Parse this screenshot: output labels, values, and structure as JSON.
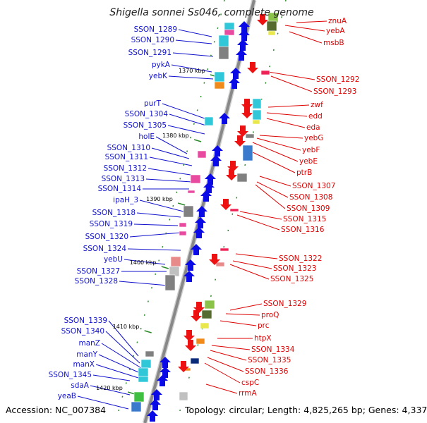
{
  "title": "Shigella sonnei Ss046, complete genome",
  "footer": {
    "accession": "Accession: NC_007384",
    "summary": "Topology: circular; Length: 4,825,265 bp; Genes: 4,337"
  },
  "colors": {
    "left_label": "#1010cc",
    "right_label": "#dd0000",
    "backbone": "#888888",
    "forward_arrow": "#0a0ae6",
    "reverse_arrow": "#ee1111",
    "tick": "#2a8a2a"
  },
  "kbp_ticks": [
    {
      "label": "1370 kbp",
      "kbp": 1370
    },
    {
      "label": "1380 kbp",
      "kbp": 1380
    },
    {
      "label": "1390 kbp",
      "kbp": 1390
    },
    {
      "label": "1400 kbp",
      "kbp": 1400
    },
    {
      "label": "1410 kbp",
      "kbp": 1410
    },
    {
      "label": "1420 kbp",
      "kbp": 1420
    }
  ],
  "left_genes": [
    "SSON_1289",
    "SSON_1290",
    "SSON_1291",
    "pykA",
    "yebK",
    "purT",
    "SSON_1304",
    "SSON_1305",
    "holE",
    "SSON_1310",
    "SSON_1311",
    "SSON_1312",
    "SSON_1313",
    "SSON_1314",
    "ipaH_3",
    "SSON_1318",
    "SSON_1319",
    "SSON_1320",
    "SSON_1324",
    "yebU",
    "SSON_1327",
    "SSON_1328",
    "SSON_1339",
    "SSON_1340",
    "manZ",
    "manY",
    "manX",
    "SSON_1345",
    "sdaA",
    "yeaB"
  ],
  "right_genes": [
    "znuA",
    "yebA",
    "msbB",
    "SSON_1292",
    "SSON_1293",
    "zwf",
    "edd",
    "eda",
    "yebG",
    "yebF",
    "yebE",
    "ptrB",
    "SSON_1307",
    "SSON_1308",
    "SSON_1309",
    "SSON_1315",
    "SSON_1316",
    "SSON_1322",
    "SSON_1323",
    "SSON_1325",
    "SSON_1329",
    "proQ",
    "prc",
    "htpX",
    "SSON_1334",
    "SSON_1335",
    "SSON_1336",
    "cspC",
    "rrmA"
  ]
}
